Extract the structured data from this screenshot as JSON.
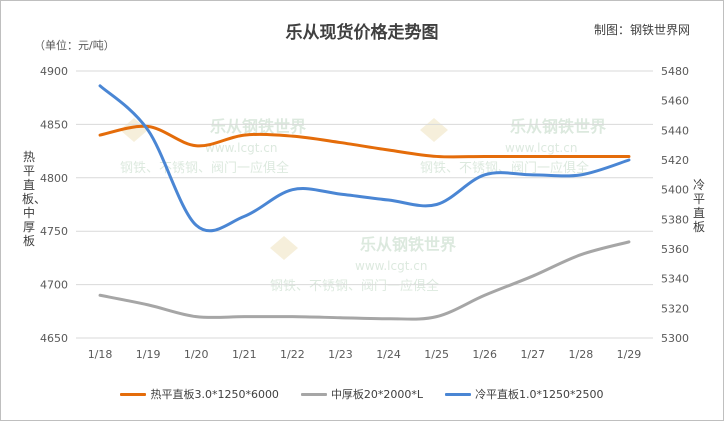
{
  "header": {
    "title": "乐从现货价格走势图",
    "source": "制图：钢铁世界网",
    "unit": "（单位：元/吨）"
  },
  "watermark": {
    "brand": "乐从钢铁世界",
    "url": "www.lcgt.cn",
    "tagline": "钢铁、不锈钢、阀门一应俱全"
  },
  "chart_data": {
    "type": "line",
    "x": [
      "1/18",
      "1/19",
      "1/20",
      "1/21",
      "1/22",
      "1/23",
      "1/24",
      "1/25",
      "1/26",
      "1/27",
      "1/28",
      "1/29"
    ],
    "y_left_label": "热平直板、中厚板",
    "y_right_label": "冷平直板",
    "y_left_range": [
      4650,
      4900
    ],
    "y_left_ticks": [
      4650,
      4700,
      4750,
      4800,
      4850,
      4900
    ],
    "y_right_range": [
      5300,
      5480
    ],
    "y_right_ticks": [
      5300,
      5320,
      5340,
      5360,
      5380,
      5400,
      5420,
      5440,
      5460,
      5480
    ],
    "grid": true,
    "legend_position": "bottom",
    "series": [
      {
        "name": "热平直板3.0*1250*6000",
        "axis": "left",
        "color": "#e46c0a",
        "values": [
          4840,
          4848,
          4830,
          4840,
          4839,
          4833,
          4826,
          4820,
          4820,
          4820,
          4820,
          4820
        ]
      },
      {
        "name": "中厚板20*2000*L",
        "axis": "left",
        "color": "#a6a6a6",
        "values": [
          4690,
          4681,
          4670,
          4670,
          4670,
          4669,
          4668,
          4670,
          4690,
          4708,
          4728,
          4740
        ]
      },
      {
        "name": "冷平直板1.0*1250*2500",
        "axis": "right",
        "color": "#4a86d4",
        "values": [
          5470,
          5440,
          5376,
          5382,
          5400,
          5397,
          5393,
          5390,
          5410,
          5410,
          5410,
          5420
        ]
      }
    ]
  }
}
